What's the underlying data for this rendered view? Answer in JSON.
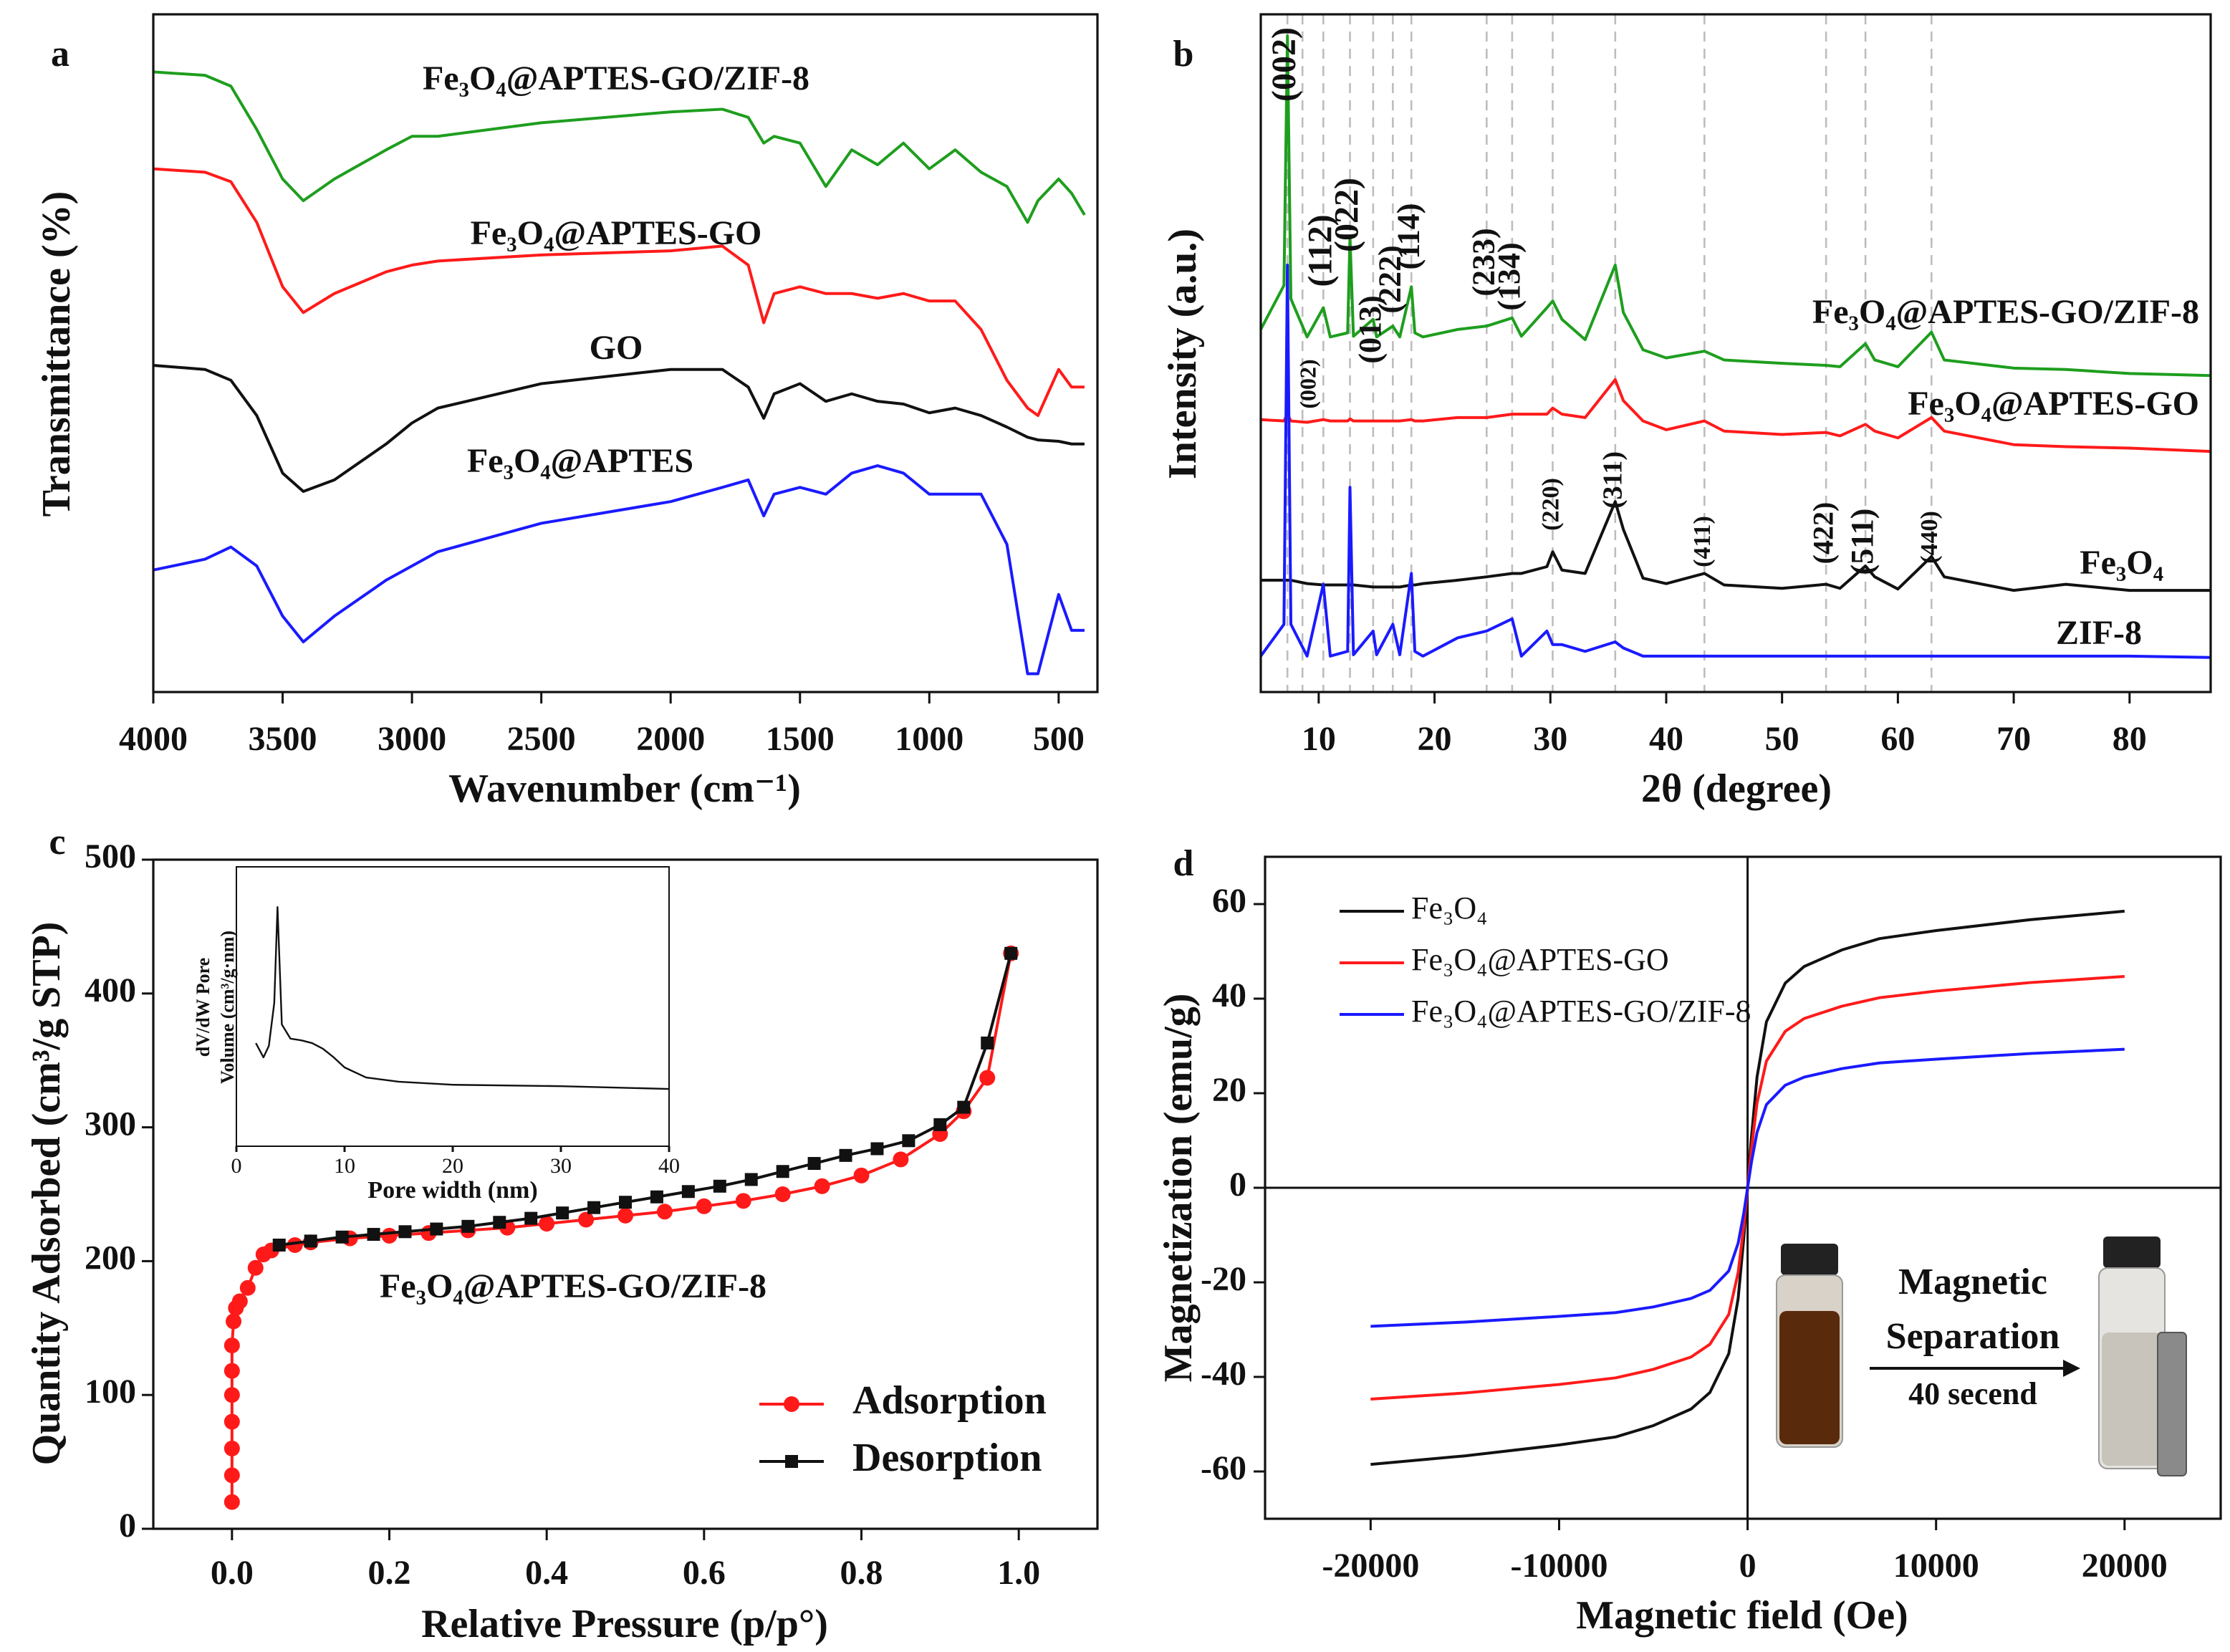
{
  "chart_data": [
    {
      "type": "line",
      "title": "a",
      "xlabel": "Wavenumber (cm⁻¹)",
      "ylabel": "Transmittance (%)",
      "xlim": [
        4000,
        350
      ],
      "xticks": [
        4000,
        3500,
        3000,
        2500,
        2000,
        1500,
        1000,
        500
      ],
      "ylim": [
        0,
        100
      ],
      "x": [
        4000,
        3800,
        3700,
        3600,
        3500,
        3420,
        3300,
        3100,
        3000,
        2900,
        2500,
        2000,
        1800,
        1700,
        1640,
        1600,
        1500,
        1400,
        1300,
        1200,
        1100,
        1000,
        900,
        800,
        700,
        620,
        580,
        500,
        450,
        400
      ],
      "series": [
        {
          "name": "Fe₃O₄@APTES-GO/ZIF-8",
          "color": "#1e9e1e",
          "values": [
            91.5,
            91,
            89.4,
            83,
            75.7,
            72.5,
            75.7,
            80,
            82,
            82,
            84,
            85.6,
            86,
            84.8,
            81,
            82,
            81,
            74.6,
            80,
            77.8,
            81,
            77.2,
            80,
            76.7,
            74.6,
            69.3,
            72.5,
            75.7,
            73.6,
            70.4
          ]
        },
        {
          "name": "Fe₃O₄@APTES-GO",
          "color": "#ff1a1a",
          "values": [
            77.2,
            76.7,
            75.3,
            69.3,
            59.8,
            56,
            58.8,
            62,
            63,
            63.6,
            64.5,
            65.1,
            65.8,
            63,
            54.5,
            58.8,
            59.8,
            58.8,
            58.8,
            58.1,
            58.8,
            57.7,
            57.7,
            53.5,
            46,
            41.9,
            40.8,
            47.6,
            45,
            45
          ]
        },
        {
          "name": "GO",
          "color": "#111111",
          "values": [
            48.2,
            47.6,
            46,
            40.8,
            32.3,
            29.6,
            31.3,
            36.6,
            39.7,
            41.9,
            45.5,
            47.6,
            47.6,
            45,
            40.4,
            44,
            45.5,
            42.9,
            44,
            42.9,
            42.5,
            41.2,
            41.9,
            40.8,
            39.1,
            37.6,
            37.2,
            37,
            36.6,
            36.6
          ]
        },
        {
          "name": "Fe₃O₄@APTES",
          "color": "#1a1aff",
          "values": [
            18,
            19.6,
            21.4,
            18.6,
            11.2,
            7.4,
            11.2,
            16.5,
            18.6,
            20.7,
            24.9,
            28.1,
            30.2,
            31.3,
            26,
            29.2,
            30.2,
            29.2,
            32.3,
            33.4,
            32.3,
            29.2,
            29.2,
            29.2,
            21.8,
            2.7,
            2.7,
            14.4,
            9.1,
            9.1
          ]
        }
      ]
    },
    {
      "type": "line",
      "title": "b",
      "xlabel": "2θ (degree)",
      "ylabel": "Intensity (a.u.)",
      "xlim": [
        5,
        87
      ],
      "xticks": [
        10,
        20,
        30,
        40,
        50,
        60,
        70,
        80
      ],
      "ylim": [
        0,
        100
      ],
      "x": [
        5,
        7,
        7.3,
        7.6,
        9,
        10.4,
        11,
        12.5,
        12.7,
        13,
        14.7,
        15,
        16.4,
        17,
        18,
        18.3,
        19,
        22,
        24.5,
        26.7,
        27.5,
        29.7,
        30.2,
        31,
        33,
        35.6,
        36.3,
        38,
        40,
        43.3,
        45,
        50,
        53.8,
        55,
        57.2,
        58,
        60,
        62.9,
        64,
        70,
        74.5,
        80,
        87
      ],
      "series": [
        {
          "name": "Fe₃O₄@APTES-GO/ZIF-8",
          "color": "#1e9e1e",
          "values": [
            53.5,
            60,
            96.8,
            58,
            52.4,
            56.7,
            52.4,
            53,
            67.2,
            52.5,
            55,
            52.4,
            54,
            52.4,
            59.8,
            53,
            52.4,
            53.5,
            54,
            55.2,
            52.5,
            56.7,
            57.7,
            55,
            52,
            63,
            56,
            50.5,
            49.3,
            50.3,
            49,
            48.5,
            48.2,
            48,
            51.4,
            49,
            48,
            53.1,
            49,
            47.8,
            47.6,
            47,
            46.7
          ]
        },
        {
          "name": "Fe₃O₄@APTES-GO",
          "color": "#ff1a1a",
          "values": [
            40.2,
            40,
            41,
            40,
            39.8,
            40.2,
            40,
            40,
            40.3,
            40,
            40,
            40,
            40,
            40,
            40.2,
            40,
            40,
            40.5,
            40.5,
            41,
            41,
            41,
            41.9,
            41,
            40.5,
            46.1,
            43,
            40,
            38.7,
            40,
            38.5,
            38,
            38.3,
            37.8,
            39.5,
            38.5,
            37.5,
            40.5,
            38.5,
            36.5,
            36.2,
            36,
            35.5
          ]
        },
        {
          "name": "Fe₃O₄",
          "color": "#111111",
          "values": [
            16.5,
            16.5,
            16.5,
            16.5,
            16,
            15.8,
            15.8,
            15.8,
            15.8,
            15.8,
            15.5,
            15.5,
            15.5,
            15.5,
            15.8,
            15.8,
            16,
            16.5,
            17,
            17.5,
            17.5,
            18.5,
            20.7,
            18,
            17.5,
            28.1,
            24,
            16.8,
            16,
            17.5,
            15.8,
            15.3,
            15.9,
            15.3,
            18.6,
            17,
            15.2,
            20,
            17,
            15,
            15.9,
            15,
            15
          ]
        },
        {
          "name": "ZIF-8",
          "color": "#1a1aff",
          "values": [
            5.3,
            10,
            63,
            10,
            5.3,
            15.9,
            5.3,
            6,
            30.2,
            5.5,
            9,
            5.5,
            10,
            5.5,
            17.5,
            6,
            5.3,
            8,
            9,
            10.8,
            5.3,
            9,
            7,
            7,
            6,
            7.4,
            6.5,
            5.3,
            5.3,
            5.3,
            5.3,
            5.3,
            5.3,
            5.3,
            5.3,
            5.3,
            5.3,
            5.3,
            5.3,
            5.3,
            5.3,
            5.3,
            5.1
          ]
        }
      ],
      "reference_lines": [
        7.3,
        8.6,
        10.4,
        12.7,
        14.7,
        16.4,
        18,
        24.5,
        26.7,
        30.2,
        35.6,
        43.3,
        53.8,
        57.2,
        62.9
      ],
      "annotations": [
        {
          "text": "(002)",
          "x": 7.3
        },
        {
          "text": "(112)",
          "x": 10.4
        },
        {
          "text": "(022)",
          "x": 12.7
        },
        {
          "text": "(013)",
          "x": 14.7
        },
        {
          "text": "(222)",
          "x": 16.4
        },
        {
          "text": "(114)",
          "x": 18
        },
        {
          "text": "(233)",
          "x": 24.5
        },
        {
          "text": "(134)",
          "x": 26.7
        },
        {
          "text": "(002)",
          "x": 7.3
        },
        {
          "text": "(220)",
          "x": 30.2
        },
        {
          "text": "(311)",
          "x": 35.6
        },
        {
          "text": "(411)",
          "x": 43.3
        },
        {
          "text": "(422)",
          "x": 53.8
        },
        {
          "text": "(511)",
          "x": 57.2
        },
        {
          "text": "(440)",
          "x": 62.9
        }
      ]
    },
    {
      "type": "scatter",
      "title": "c",
      "xlabel": "Relative Pressure (p/p°)",
      "ylabel": "Quantity Adsorbed (cm³/g STP)",
      "xlim": [
        -0.1,
        1.1
      ],
      "xticks": [
        {
          "value": 0,
          "label": "0.0"
        },
        {
          "value": 0.2,
          "label": "0.2"
        },
        {
          "value": 0.4,
          "label": "0.4"
        },
        {
          "value": 0.6,
          "label": "0.6"
        },
        {
          "value": 0.8,
          "label": "0.8"
        },
        {
          "value": 1,
          "label": "1.0"
        }
      ],
      "ylim": [
        0,
        500
      ],
      "yticks": [
        0,
        100,
        200,
        300,
        400,
        500
      ],
      "legend": "lower right",
      "series": [
        {
          "name": "Adsorption",
          "color": "#ff1a1a",
          "marker": "circle",
          "x": [
            0,
            0,
            0,
            0,
            0,
            0,
            0,
            0.002,
            0.005,
            0.01,
            0.02,
            0.03,
            0.04,
            0.05,
            0.08,
            0.1,
            0.15,
            0.2,
            0.25,
            0.3,
            0.35,
            0.4,
            0.45,
            0.5,
            0.55,
            0.6,
            0.65,
            0.7,
            0.75,
            0.8,
            0.85,
            0.9,
            0.93,
            0.96,
            0.99
          ],
          "values": [
            20,
            40,
            60,
            80,
            100,
            118,
            137,
            155,
            165,
            170,
            180,
            195,
            205,
            208,
            212,
            214,
            217,
            219,
            221,
            223,
            225,
            228,
            231,
            234,
            237,
            241,
            245,
            250,
            256,
            264,
            276,
            295,
            312,
            337,
            430
          ]
        },
        {
          "name": "Desorption",
          "color": "#111111",
          "marker": "square",
          "x": [
            0.99,
            0.96,
            0.93,
            0.9,
            0.86,
            0.82,
            0.78,
            0.74,
            0.7,
            0.66,
            0.62,
            0.58,
            0.54,
            0.5,
            0.46,
            0.42,
            0.38,
            0.34,
            0.3,
            0.26,
            0.22,
            0.18,
            0.14,
            0.1,
            0.06
          ],
          "values": [
            430,
            363,
            315,
            302,
            290,
            284,
            279,
            273,
            267,
            261,
            256,
            252,
            248,
            244,
            240,
            236,
            232,
            229,
            226,
            224,
            222,
            220,
            218,
            215,
            212
          ]
        }
      ],
      "annotations": [
        "Fe₃O₄@APTES-GO/ZIF-8"
      ]
    },
    {
      "type": "line",
      "xlabel": "Pore width (nm)",
      "ylabel": [
        "dV/dW Pore",
        "Volume (cm³/g·nm)"
      ],
      "xlim": [
        0,
        40
      ],
      "xticks": [
        0,
        10,
        20,
        30,
        40
      ],
      "ylim": [
        0,
        100
      ],
      "x": [
        1.8,
        2.5,
        3,
        3.5,
        3.8,
        4.2,
        5,
        6,
        7,
        8,
        9,
        10,
        12,
        15,
        20,
        30,
        40
      ],
      "series": [
        {
          "color": "#111111",
          "values": [
            36.9,
            31.8,
            35.9,
            51.3,
            85.6,
            43.6,
            38.5,
            37.9,
            36.9,
            34.9,
            31.8,
            28.2,
            24.6,
            23.1,
            22,
            21.5,
            20.5
          ]
        }
      ]
    },
    {
      "type": "line",
      "title": "d",
      "xlabel": "Magnetic field (Oe)",
      "ylabel": "Magnetization (emu/g)",
      "xlim": [
        -25600,
        25100
      ],
      "xticks": [
        -20000,
        -10000,
        0,
        10000,
        20000
      ],
      "ylim": [
        -70,
        70
      ],
      "yticks": [
        -60,
        -40,
        -20,
        0,
        20,
        40,
        60
      ],
      "axes_at_zero": true,
      "legend": "upper left",
      "x": [
        -20000,
        -15000,
        -10000,
        -7000,
        -5000,
        -3000,
        -2000,
        -1000,
        -500,
        -200,
        0,
        200,
        500,
        1000,
        2000,
        3000,
        5000,
        7000,
        10000,
        15000,
        20000
      ],
      "series": [
        {
          "name": "Fe₃O₄",
          "color": "#111111",
          "values": [
            -58.5,
            -56.7,
            -54.4,
            -52.7,
            -50.3,
            -46.8,
            -43.3,
            -35.1,
            -23.4,
            -10.5,
            0,
            10.5,
            23.4,
            35.1,
            43.3,
            46.8,
            50.3,
            52.7,
            54.4,
            56.7,
            58.5
          ]
        },
        {
          "name": "Fe₃O₄@APTES-GO",
          "color": "#ff1a1a",
          "values": [
            -44.7,
            -43.4,
            -41.6,
            -40.2,
            -38.4,
            -35.8,
            -33.1,
            -26.8,
            -17.9,
            -8,
            0,
            8,
            17.9,
            26.8,
            33.1,
            35.8,
            38.4,
            40.2,
            41.6,
            43.4,
            44.7
          ]
        },
        {
          "name": "Fe₃O₄@APTES-GO/ZIF-8",
          "color": "#1a1aff",
          "values": [
            -29.3,
            -28.4,
            -27.2,
            -26.4,
            -25.2,
            -23.4,
            -21.7,
            -17.6,
            -11.7,
            -5.3,
            0,
            5.3,
            11.7,
            17.6,
            21.7,
            23.4,
            25.2,
            26.4,
            27.2,
            28.4,
            29.3
          ]
        }
      ],
      "annotations": [
        "Magnetic",
        "Separation",
        "40 secend"
      ]
    }
  ]
}
